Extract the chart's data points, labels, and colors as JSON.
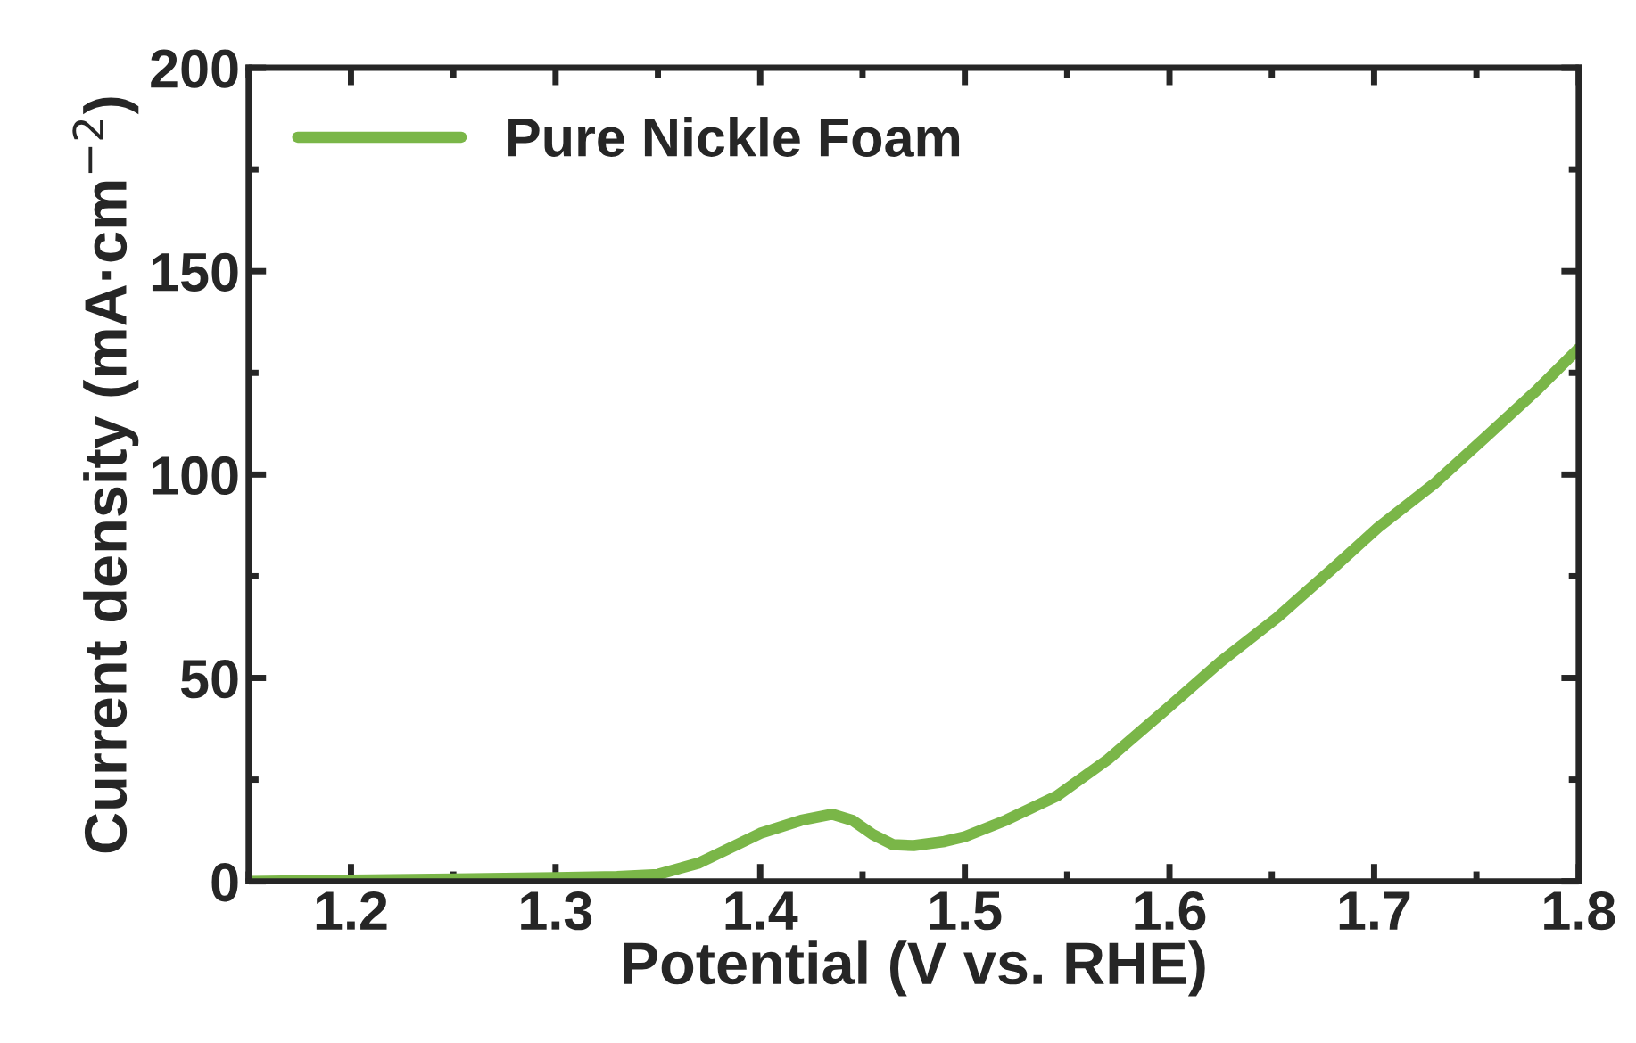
{
  "chart_data": {
    "type": "line",
    "xlabel": "Potential (V vs. RHE)",
    "ylabel": "Current density (mA·cm$^{−2}$)",
    "xlim": [
      1.15,
      1.8
    ],
    "xticks": [
      1.2,
      1.3,
      1.4,
      1.5,
      1.6,
      1.7,
      1.8
    ],
    "ylim": [
      0,
      200
    ],
    "yticks": [
      0,
      50,
      100,
      150,
      200
    ],
    "legend": "top left",
    "grid": false,
    "series": [
      {
        "name": "Pure Nickle Foam",
        "color": "#7ab648",
        "x": [
          1.15,
          1.2,
          1.25,
          1.3,
          1.33,
          1.35,
          1.37,
          1.4,
          1.42,
          1.435,
          1.445,
          1.455,
          1.465,
          1.475,
          1.49,
          1.5,
          1.52,
          1.545,
          1.57,
          1.6,
          1.625,
          1.653,
          1.68,
          1.702,
          1.73,
          1.754,
          1.78,
          1.8
        ],
        "values": [
          0,
          0.3,
          0.6,
          0.9,
          1.2,
          1.7,
          4.5,
          11.8,
          15,
          16.5,
          15,
          11.5,
          9,
          8.8,
          9.8,
          11,
          15,
          21,
          30,
          43,
          54,
          65,
          77,
          87,
          98,
          109,
          121,
          131
        ]
      }
    ]
  }
}
